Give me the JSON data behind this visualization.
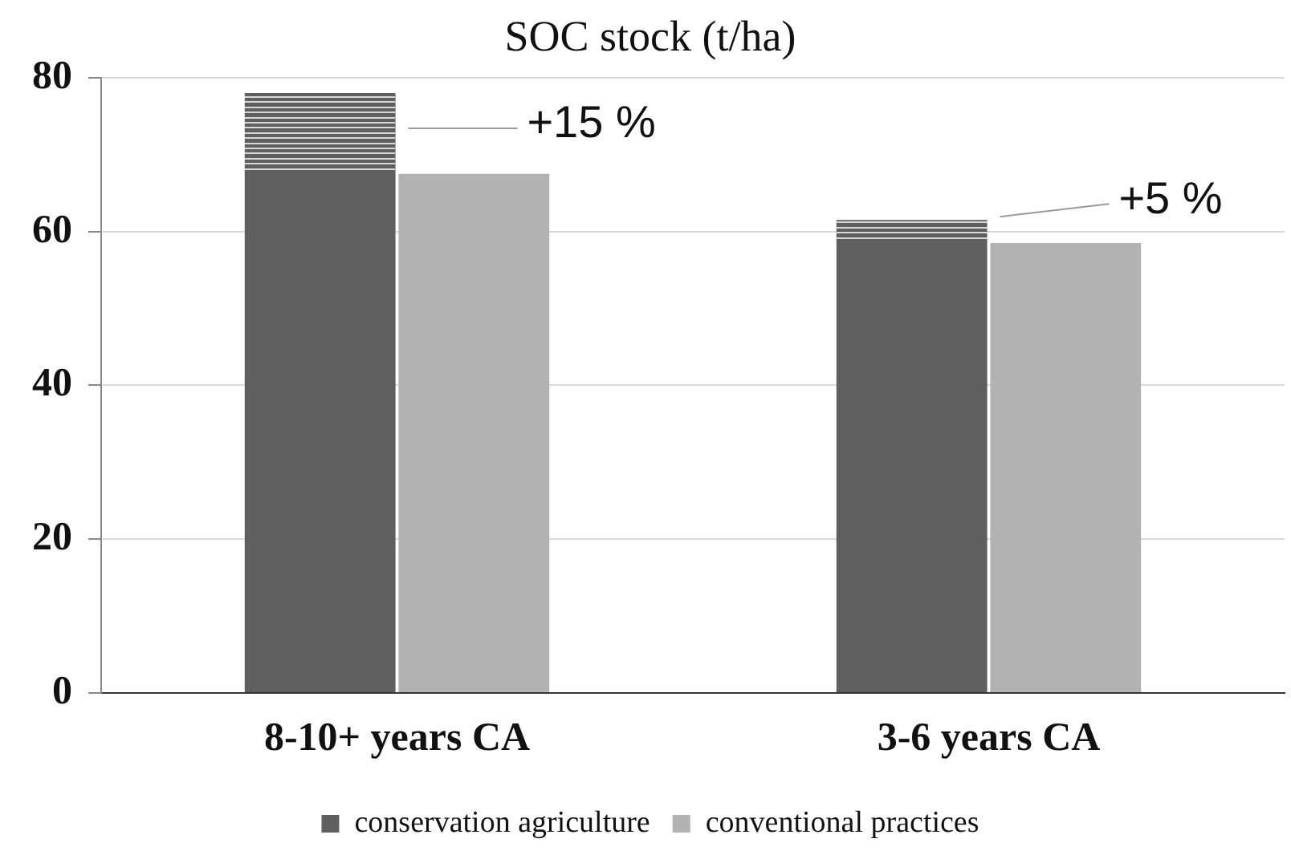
{
  "chart_data": {
    "type": "bar",
    "title": "SOC stock (t/ha)",
    "categories": [
      "8-10+ years CA",
      "3-6 years CA"
    ],
    "series": [
      {
        "name": "conservation agriculture",
        "color": "#5f5f5f",
        "values": [
          78,
          61.5
        ]
      },
      {
        "name": "conventional practices",
        "color": "#b2b2b2",
        "values": [
          67.5,
          58.5
        ]
      }
    ],
    "ylim": [
      0,
      80
    ],
    "yticks": [
      0,
      20,
      40,
      60,
      80
    ],
    "grid": "y",
    "legend": "bottom",
    "annotations": [
      "+15 %",
      "+5 %"
    ]
  }
}
